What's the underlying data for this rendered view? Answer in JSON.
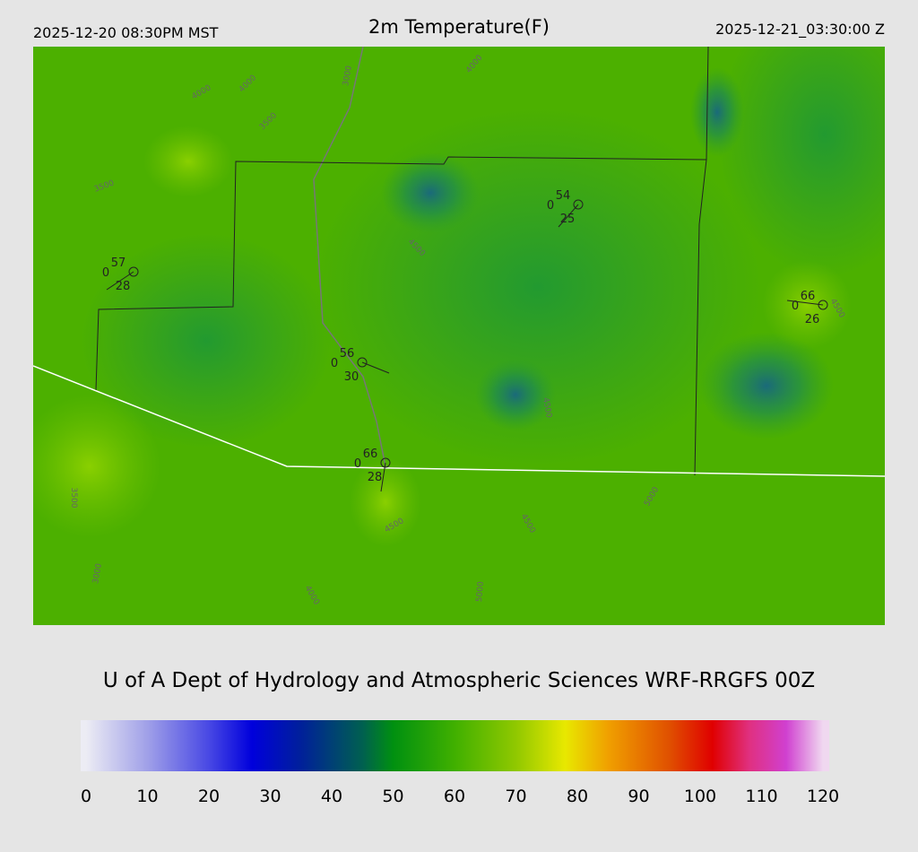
{
  "header": {
    "left": "2025-12-20 08:30PM MST",
    "title": "2m Temperature(F)",
    "right": "2025-12-21_03:30:00 Z"
  },
  "stations": [
    {
      "temperature": 57,
      "code": 0,
      "dewpoint": 28
    },
    {
      "temperature": 54,
      "code": 0,
      "dewpoint": 25
    },
    {
      "temperature": 66,
      "code": 0,
      "dewpoint": 26
    },
    {
      "temperature": 56,
      "code": 0,
      "dewpoint": 30
    },
    {
      "temperature": 66,
      "code": 0,
      "dewpoint": 28
    }
  ],
  "contour_labels": [
    "4000",
    "4000",
    "3500",
    "3000",
    "4000",
    "3500",
    "4500",
    "3500",
    "3000",
    "4000",
    "4500",
    "4500",
    "5000",
    "4500",
    "5000",
    "4500"
  ],
  "credit": "U of A Dept of Hydrology and Atmospheric Sciences WRF-RRGFS 00Z",
  "colorbar": {
    "lim": [
      0,
      120
    ],
    "ticks": [
      0,
      10,
      20,
      30,
      40,
      50,
      60,
      70,
      80,
      90,
      100,
      110,
      120
    ],
    "stops": [
      {
        "value": 0,
        "color": "#ececf4"
      },
      {
        "value": 10,
        "color": "#a0a0e8"
      },
      {
        "value": 20,
        "color": "#4848e4"
      },
      {
        "value": 27,
        "color": "#0000dc"
      },
      {
        "value": 35,
        "color": "#00209a"
      },
      {
        "value": 45,
        "color": "#006050"
      },
      {
        "value": 50,
        "color": "#009010"
      },
      {
        "value": 60,
        "color": "#40b000"
      },
      {
        "value": 70,
        "color": "#90c800"
      },
      {
        "value": 78,
        "color": "#e8e800"
      },
      {
        "value": 85,
        "color": "#f0a000"
      },
      {
        "value": 95,
        "color": "#e05000"
      },
      {
        "value": 102,
        "color": "#e00000"
      },
      {
        "value": 108,
        "color": "#e03080"
      },
      {
        "value": 114,
        "color": "#d040d0"
      },
      {
        "value": 120,
        "color": "#f0d8f0"
      }
    ]
  }
}
